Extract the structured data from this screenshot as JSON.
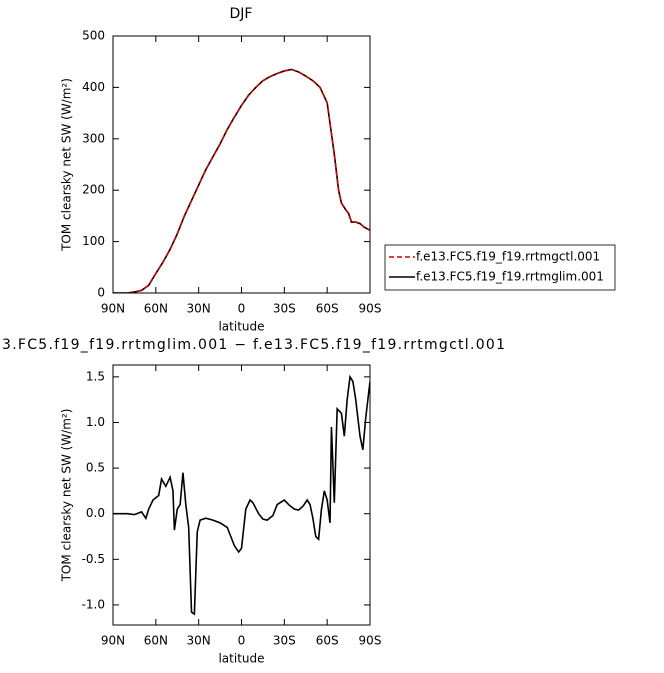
{
  "chart_data": [
    {
      "type": "line",
      "title": "DJF",
      "xlabel": "latitude",
      "ylabel": "TOM clearsky net SW (W/m²)",
      "x": [
        90,
        80,
        75,
        70,
        65,
        60,
        55,
        50,
        45,
        40,
        35,
        30,
        25,
        20,
        15,
        10,
        5,
        0,
        -5,
        -10,
        -15,
        -20,
        -25,
        -30,
        -35,
        -40,
        -45,
        -50,
        -55,
        -60,
        -62,
        -65,
        -68,
        -70,
        -73,
        -75,
        -77,
        -80,
        -83,
        -86,
        -90
      ],
      "series": [
        {
          "name": "f.e13.FC5.f19_f19.rrtmglim.001",
          "color": "#000000",
          "dash": "solid",
          "values": [
            0,
            0,
            2,
            5,
            15,
            38,
            60,
            85,
            115,
            150,
            180,
            210,
            240,
            265,
            290,
            318,
            342,
            365,
            385,
            400,
            413,
            421,
            427,
            432,
            435,
            430,
            422,
            413,
            400,
            370,
            330,
            270,
            200,
            175,
            162,
            155,
            138,
            138,
            135,
            128,
            122
          ]
        },
        {
          "name": "f.e13.FC5.f19_f19.rrtmgctl.001",
          "color": "#cc0000",
          "dash": "dashed",
          "values": [
            0,
            0,
            2,
            5,
            15,
            38,
            60,
            85,
            115,
            150,
            180,
            210,
            240,
            265,
            290,
            318,
            342,
            365,
            385,
            400,
            413,
            421,
            427,
            432,
            435,
            430,
            422,
            413,
            400,
            370,
            330,
            270,
            200,
            175,
            162,
            155,
            138,
            138,
            135,
            128,
            122
          ]
        }
      ],
      "xlim": [
        90,
        -90
      ],
      "xticks": [
        {
          "value": 90,
          "label": "90N"
        },
        {
          "value": 60,
          "label": "60N"
        },
        {
          "value": 30,
          "label": "30N"
        },
        0,
        {
          "value": -30,
          "label": "30S"
        },
        {
          "value": -60,
          "label": "60S"
        },
        {
          "value": -90,
          "label": "90S"
        }
      ],
      "ylim": [
        0,
        500
      ],
      "yticks": [
        0,
        100,
        200,
        300,
        400,
        500
      ],
      "legend": "outside-right"
    },
    {
      "type": "line",
      "title": "3.FC5.f19_f19.rrtmglim.001 − f.e13.FC5.f19_f19.rrtmgctl.001",
      "xlabel": "latitude",
      "ylabel": "TOM clearsky net SW (W/m²)",
      "x": [
        90,
        80,
        75,
        70,
        67,
        65,
        62,
        58,
        56,
        53,
        50,
        48,
        47,
        45,
        43,
        41,
        39,
        37,
        35,
        33,
        31,
        29,
        25,
        20,
        15,
        10,
        5,
        2,
        0,
        -3,
        -6,
        -8,
        -12,
        -15,
        -18,
        -22,
        -25,
        -30,
        -33,
        -37,
        -40,
        -43,
        -46,
        -48,
        -50,
        -52,
        -54,
        -56,
        -58,
        -60,
        -62,
        -63,
        -65,
        -67,
        -70,
        -72,
        -74,
        -76,
        -78,
        -80,
        -83,
        -85,
        -87,
        -90
      ],
      "series": [
        {
          "name": null,
          "color": "#000000",
          "dash": "solid",
          "values": [
            0,
            0,
            -0.01,
            0.02,
            -0.05,
            0.05,
            0.15,
            0.2,
            0.38,
            0.3,
            0.4,
            0.25,
            -0.18,
            0.05,
            0.1,
            0.45,
            0.1,
            -0.15,
            -1.08,
            -1.1,
            -0.2,
            -0.07,
            -0.05,
            -0.07,
            -0.1,
            -0.15,
            -0.35,
            -0.42,
            -0.38,
            0.05,
            0.15,
            0.12,
            0,
            -0.06,
            -0.07,
            -0.02,
            0.1,
            0.15,
            0.1,
            0.05,
            0.04,
            0.08,
            0.15,
            0.1,
            -0.05,
            -0.25,
            -0.28,
            0.05,
            0.25,
            0.15,
            -0.1,
            0.95,
            0.12,
            1.15,
            1.1,
            0.85,
            1.25,
            1.5,
            1.45,
            1.25,
            0.85,
            0.7,
            1.05,
            1.45
          ]
        }
      ],
      "xlim": [
        90,
        -90
      ],
      "xticks": [
        {
          "value": 90,
          "label": "90N"
        },
        {
          "value": 60,
          "label": "60N"
        },
        {
          "value": 30,
          "label": "30N"
        },
        0,
        {
          "value": -30,
          "label": "30S"
        },
        {
          "value": -60,
          "label": "60S"
        },
        {
          "value": -90,
          "label": "90S"
        }
      ],
      "ylim": [
        -1.22,
        1.63
      ],
      "yticks": [
        {
          "value": -1,
          "label": "-1.0"
        },
        -0.5,
        {
          "value": 0,
          "label": "0.0"
        },
        0.5,
        {
          "value": 1,
          "label": "1.0"
        },
        1.5
      ]
    }
  ]
}
